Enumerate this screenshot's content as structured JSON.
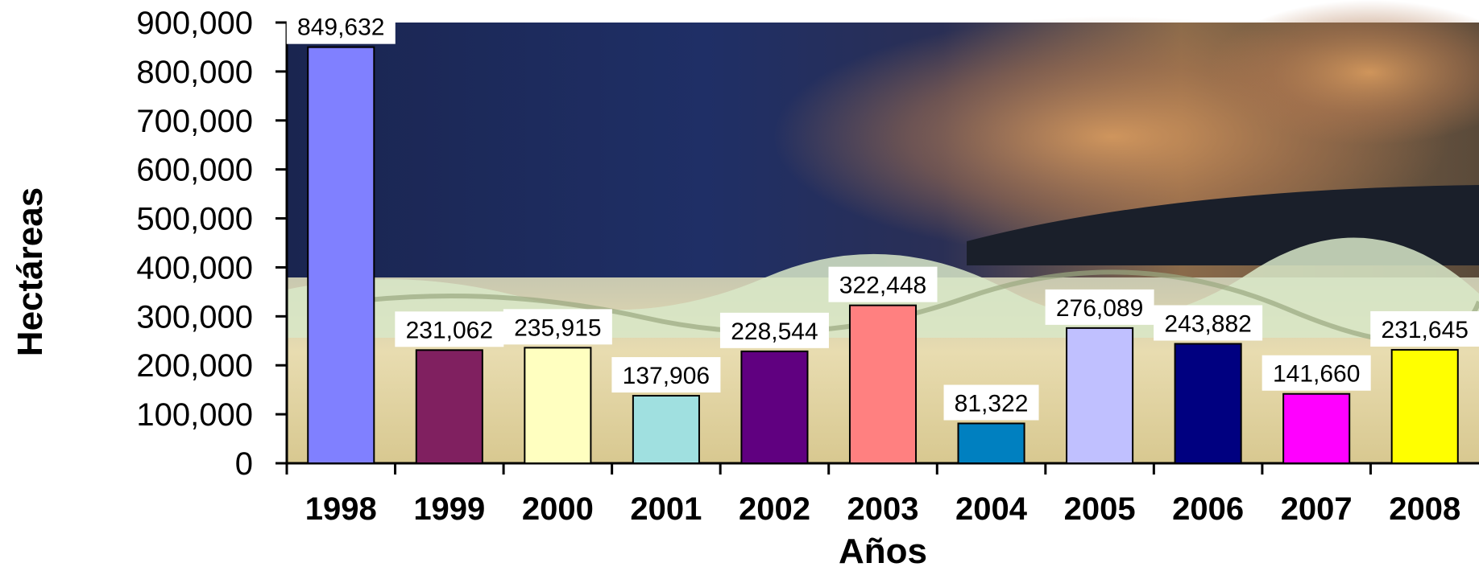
{
  "chart_data": {
    "type": "bar",
    "title": "",
    "xlabel": "Años",
    "ylabel": "Hectáreas",
    "categories": [
      "1998",
      "1999",
      "2000",
      "2001",
      "2002",
      "2003",
      "2004",
      "2005",
      "2006",
      "2007",
      "2008"
    ],
    "values": [
      849632,
      231062,
      235915,
      137906,
      228544,
      322448,
      81322,
      276089,
      243882,
      141660,
      231645
    ],
    "data_labels": [
      "849,632",
      "231,062",
      "235,915",
      "137,906",
      "228,544",
      "322,448",
      "81,322",
      "276,089",
      "243,882",
      "141,660",
      "231,645"
    ],
    "colors": [
      "#8080ff",
      "#802060",
      "#ffffc0",
      "#a0e0e0",
      "#600080",
      "#ff8080",
      "#0080c0",
      "#c0c0ff",
      "#000080",
      "#ff00ff",
      "#ffff00"
    ],
    "ylim": [
      0,
      900000
    ],
    "yticks": [
      0,
      100000,
      200000,
      300000,
      400000,
      500000,
      600000,
      700000,
      800000,
      900000
    ],
    "ytick_labels": [
      "0",
      "100,000",
      "200,000",
      "300,000",
      "400,000",
      "500,000",
      "600,000",
      "700,000",
      "800,000",
      "900,000"
    ],
    "grid": false,
    "legend": "none",
    "background": "photograph of a wildfire smoke cloud over an orchard"
  }
}
